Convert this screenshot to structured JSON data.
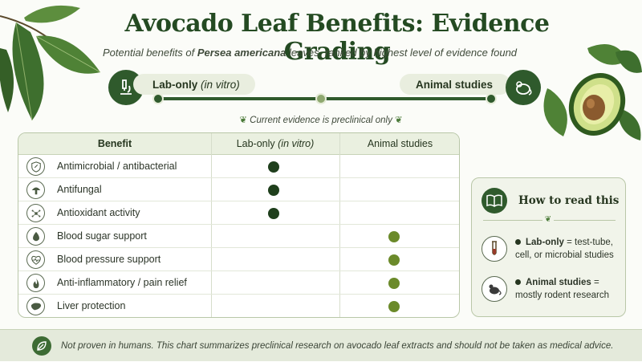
{
  "title": "Avocado Leaf Benefits: Evidence Grading",
  "subtitle": {
    "prefix": "Potential benefits of ",
    "species": "Persea americana",
    "suffix": " leaves, ranked by highest level of evidence found"
  },
  "scale": {
    "left_label": "Lab-only",
    "left_label_italic": "(in vitro)",
    "right_label": "Animal studies",
    "left_icon": "microscope-icon",
    "right_icon": "mouse-icon"
  },
  "current_note": "Current evidence is preclinical only",
  "table": {
    "headers": {
      "benefit": "Benefit",
      "lab": "Lab-only",
      "lab_italic": "(in vitro)",
      "animal": "Animal studies"
    },
    "rows": [
      {
        "label": "Antimicrobial / antibacterial",
        "icon": "shield-icon",
        "level": "lab"
      },
      {
        "label": "Antifungal",
        "icon": "mushroom-icon",
        "level": "lab"
      },
      {
        "label": "Antioxidant activity",
        "icon": "molecule-icon",
        "level": "lab"
      },
      {
        "label": "Blood sugar support",
        "icon": "drop-icon",
        "level": "animal"
      },
      {
        "label": "Blood pressure support",
        "icon": "heart-pulse-icon",
        "level": "animal"
      },
      {
        "label": "Anti-inflammatory / pain relief",
        "icon": "flame-icon",
        "level": "animal"
      },
      {
        "label": "Liver protection",
        "icon": "liver-icon",
        "level": "animal"
      }
    ]
  },
  "legend": {
    "title": "How to read this",
    "icon": "book-icon",
    "items": [
      {
        "term": "Lab-only",
        "desc": " = test-tube, cell, or microbial studies",
        "icon": "test-tube-icon"
      },
      {
        "term": "Animal studies",
        "desc": " = mostly rodent research",
        "icon": "rodent-icon"
      }
    ]
  },
  "footer": {
    "text": "Not proven in humans. This chart summarizes preclinical research on avocado leaf extracts and should not be taken as medical advice.",
    "icon": "leaf-badge-icon"
  },
  "colors": {
    "lab_dot": "#1f3f1c",
    "animal_dot": "#6b8a2a",
    "accent": "#2f5a2c"
  }
}
